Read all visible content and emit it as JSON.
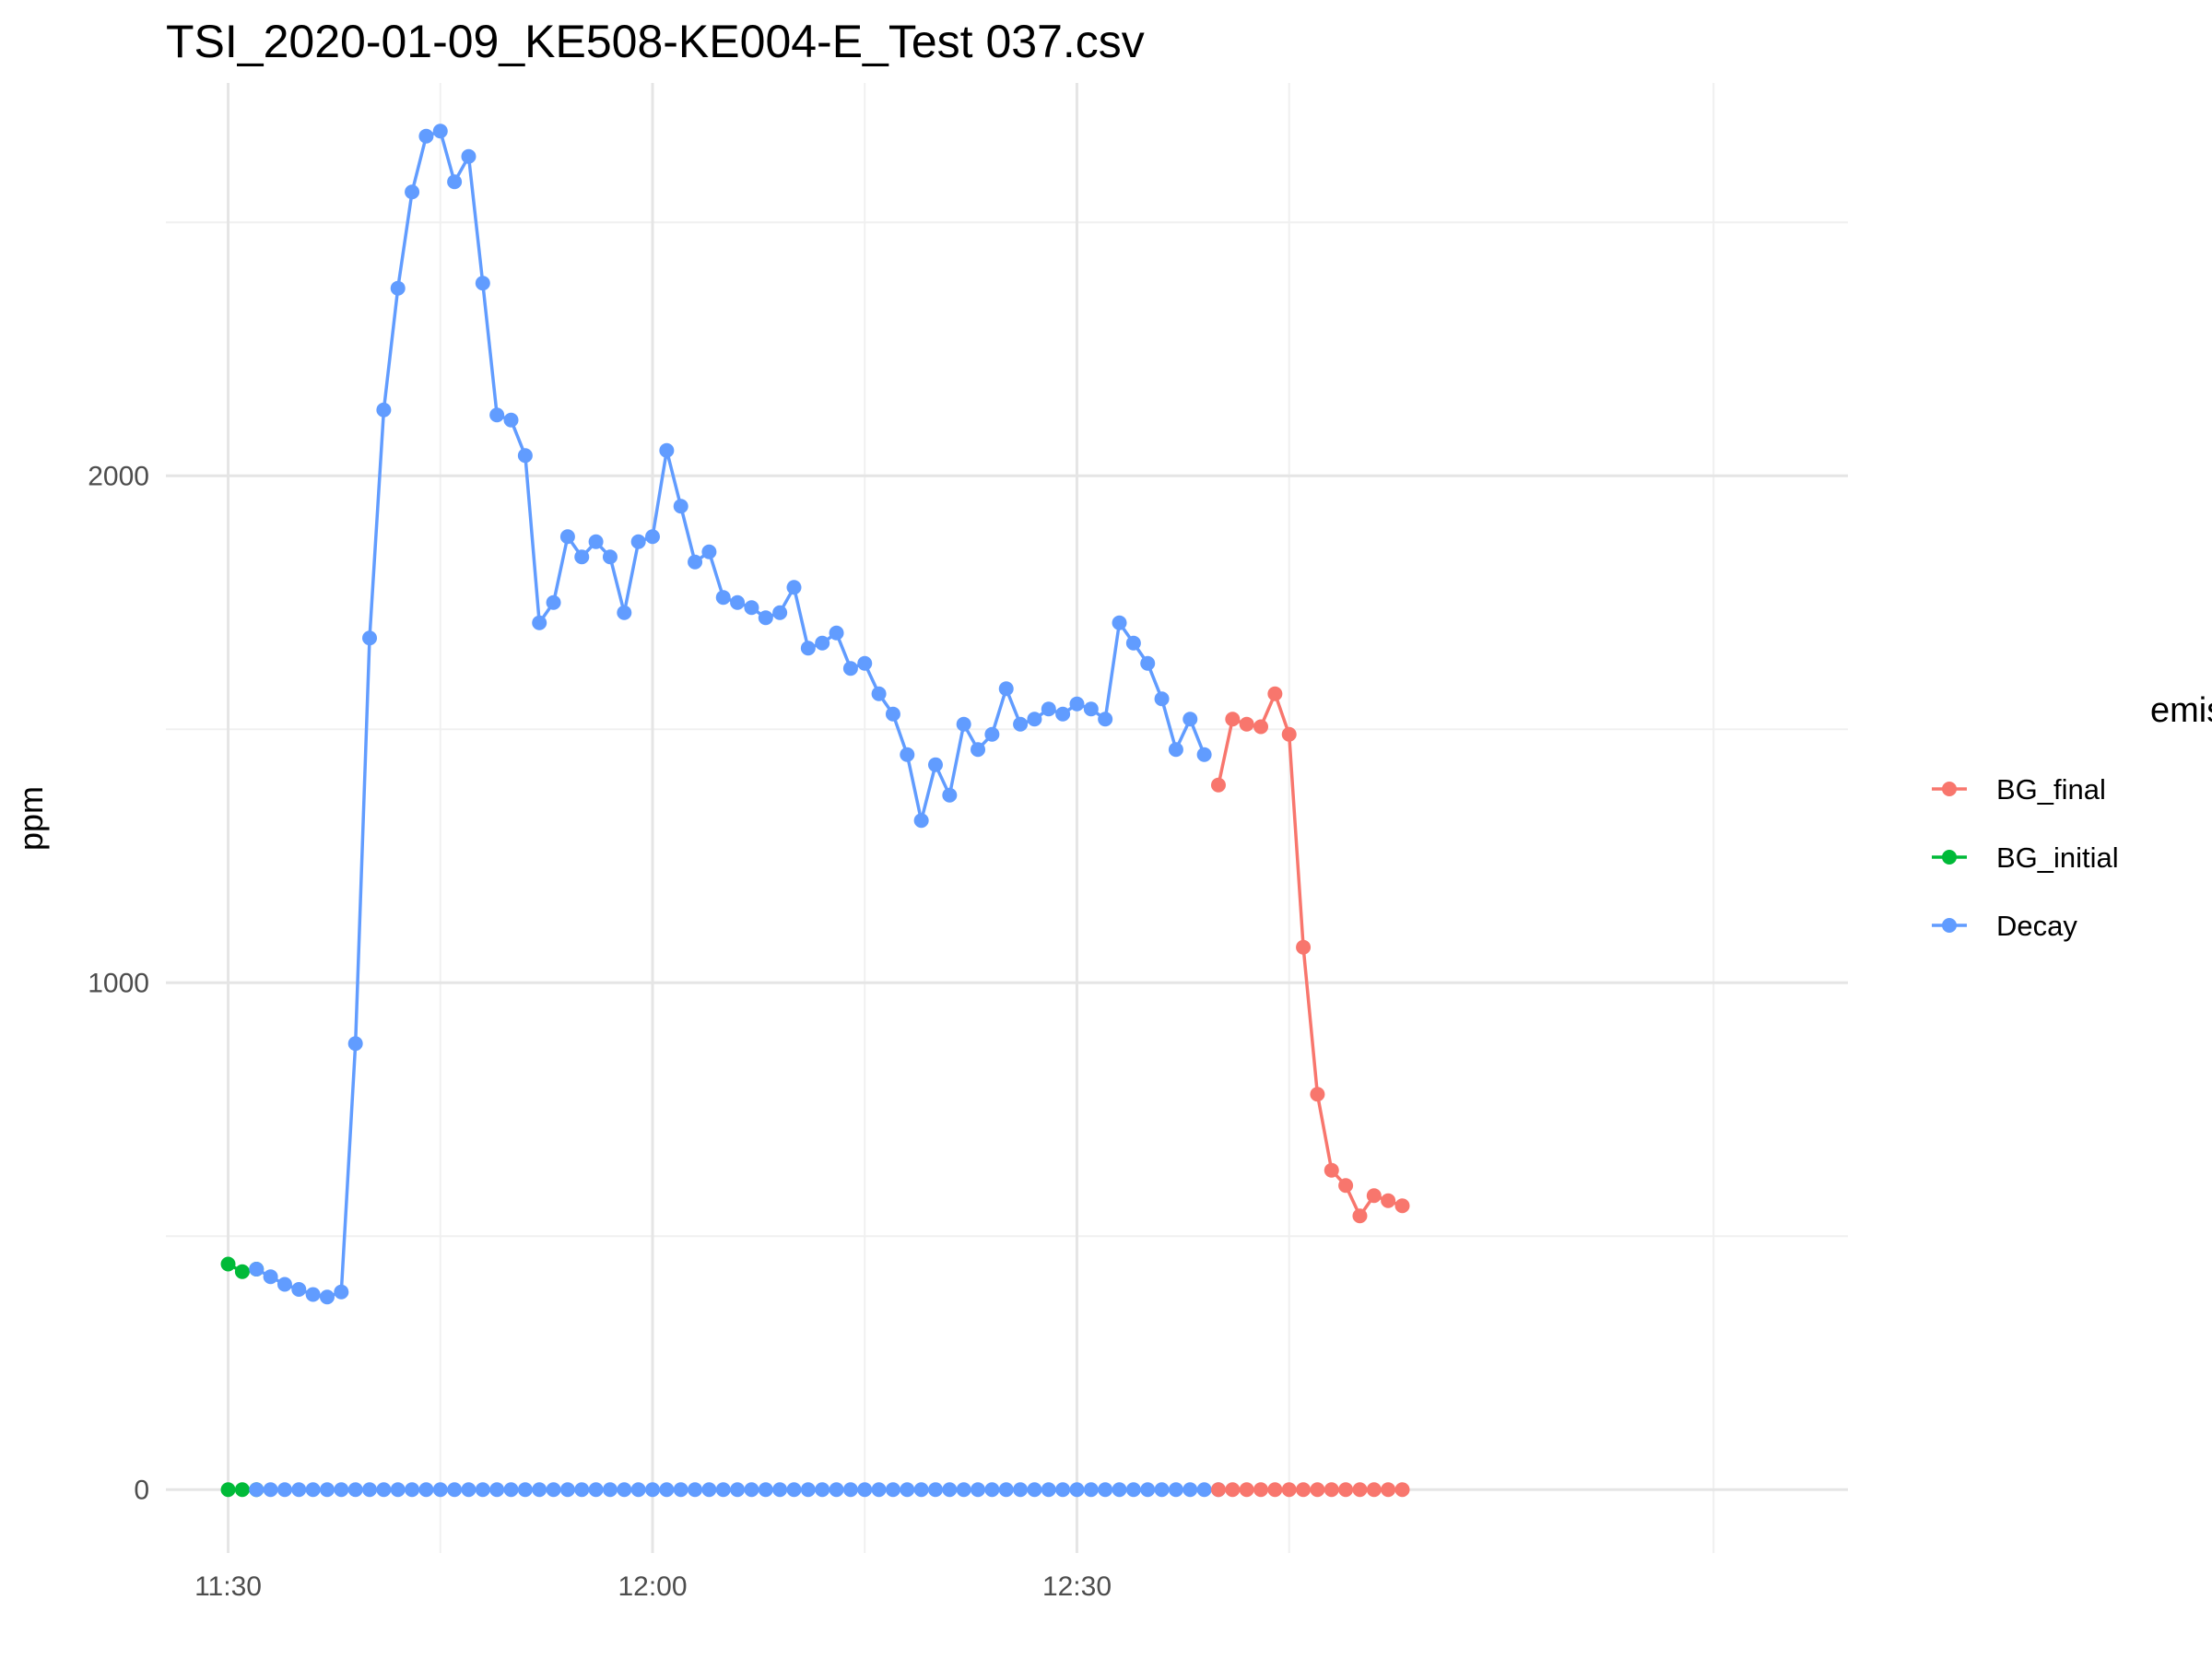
{
  "chart_data": {
    "type": "line",
    "title": "TSI_2020-01-09_KE508-KE004-E_Test 037.csv",
    "xlabel": "",
    "ylabel": "ppm",
    "x_unit": "time",
    "x_ticks": [
      {
        "label": "11:30",
        "value": "11:30"
      },
      {
        "label": "12:00",
        "value": "12:00"
      },
      {
        "label": "12:30",
        "value": "12:30"
      }
    ],
    "y_ticks": [
      0,
      1000,
      2000
    ],
    "ylim": [
      -125,
      2775
    ],
    "xlim": [
      "11:25.6",
      "13:24.5"
    ],
    "grid": true,
    "legend": {
      "title": "emission_tags",
      "position": "right"
    },
    "series": [
      {
        "name": "BG_final",
        "color": "#F8766D",
        "x": [
          "12:40",
          "12:41",
          "12:42",
          "12:43",
          "12:44",
          "12:45",
          "12:46",
          "12:47",
          "12:48",
          "12:49",
          "12:50",
          "12:51",
          "12:52",
          "12:53"
        ],
        "values": [
          1390,
          1520,
          1510,
          1505,
          1570,
          1490,
          1070,
          780,
          630,
          600,
          540,
          580,
          570,
          560
        ]
      },
      {
        "name": "BG_initial",
        "color": "#00BA38",
        "x": [
          "11:30",
          "11:31",
          "11:32"
        ],
        "values": [
          445,
          430,
          435
        ]
      },
      {
        "name": "Decay",
        "color": "#619CFF",
        "x": [
          "11:32",
          "11:33",
          "11:34",
          "11:35",
          "11:36",
          "11:37",
          "11:38",
          "11:39",
          "11:40",
          "11:41",
          "11:42",
          "11:43",
          "11:44",
          "11:45",
          "11:46",
          "11:47",
          "11:48",
          "11:49",
          "11:50",
          "11:51",
          "11:52",
          "11:53",
          "11:54",
          "11:55",
          "11:56",
          "11:57",
          "11:58",
          "11:59",
          "12:00",
          "12:01",
          "12:02",
          "12:03",
          "12:04",
          "12:05",
          "12:06",
          "12:07",
          "12:08",
          "12:09",
          "12:10",
          "12:11",
          "12:12",
          "12:13",
          "12:14",
          "12:15",
          "12:16",
          "12:17",
          "12:18",
          "12:19",
          "12:20",
          "12:21",
          "12:22",
          "12:23",
          "12:24",
          "12:25",
          "12:26",
          "12:27",
          "12:28",
          "12:29",
          "12:30",
          "12:31",
          "12:32",
          "12:33",
          "12:34",
          "12:35",
          "12:36",
          "12:37",
          "12:38",
          "12:39"
        ],
        "values": [
          435,
          420,
          405,
          395,
          385,
          380,
          390,
          880,
          1680,
          2130,
          2370,
          2560,
          2670,
          2680,
          2580,
          2630,
          2380,
          2120,
          2110,
          2040,
          1710,
          1750,
          1880,
          1840,
          1870,
          1840,
          1730,
          1870,
          1880,
          2050,
          1940,
          1830,
          1850,
          1760,
          1750,
          1740,
          1720,
          1730,
          1780,
          1660,
          1670,
          1690,
          1620,
          1630,
          1570,
          1530,
          1450,
          1320,
          1430,
          1370,
          1510,
          1460,
          1490,
          1580,
          1510,
          1520,
          1540,
          1530,
          1550,
          1540,
          1520,
          1710,
          1670,
          1630,
          1560,
          1460,
          1520,
          1450
        ]
      }
    ],
    "zero_baseline": {
      "note": "",
      "segments": [
        {
          "series": "BG_initial",
          "from": "11:30",
          "to": "11:32"
        },
        {
          "series": "Decay",
          "from": "11:32",
          "to": "12:40"
        },
        {
          "series": "BG_final",
          "from": "12:40",
          "to": "12:53"
        }
      ],
      "value": 0
    }
  }
}
